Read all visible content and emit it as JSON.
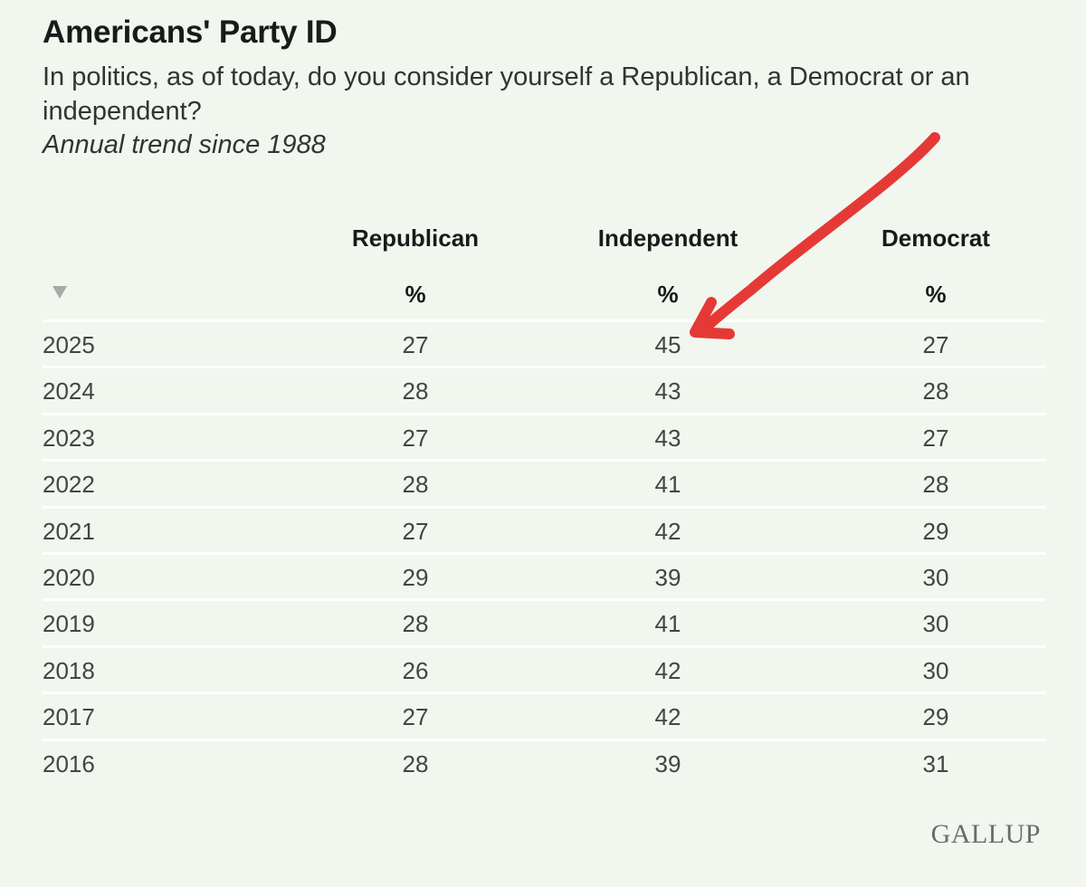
{
  "header": {
    "title": "Americans' Party ID",
    "subtitle": "In politics, as of today, do you consider yourself a Republican, a Democrat or an independent?",
    "note": "Annual trend since 1988"
  },
  "chart_data": {
    "type": "table",
    "title": "Americans' Party ID",
    "columns": [
      "Republican",
      "Independent",
      "Democrat"
    ],
    "units": [
      "%",
      "%",
      "%"
    ],
    "rows": [
      {
        "year": "2025",
        "republican": "27",
        "independent": "45",
        "democrat": "27"
      },
      {
        "year": "2024",
        "republican": "28",
        "independent": "43",
        "democrat": "28"
      },
      {
        "year": "2023",
        "republican": "27",
        "independent": "43",
        "democrat": "27"
      },
      {
        "year": "2022",
        "republican": "28",
        "independent": "41",
        "democrat": "28"
      },
      {
        "year": "2021",
        "republican": "27",
        "independent": "42",
        "democrat": "29"
      },
      {
        "year": "2020",
        "republican": "29",
        "independent": "39",
        "democrat": "30"
      },
      {
        "year": "2019",
        "republican": "28",
        "independent": "41",
        "democrat": "30"
      },
      {
        "year": "2018",
        "republican": "26",
        "independent": "42",
        "democrat": "30"
      },
      {
        "year": "2017",
        "republican": "27",
        "independent": "42",
        "democrat": "29"
      },
      {
        "year": "2016",
        "republican": "28",
        "independent": "39",
        "democrat": "31"
      }
    ]
  },
  "annotation": {
    "arrow_color": "#e53935",
    "points_to": "2025 Independent 45"
  },
  "footer": {
    "logo_text": "GALLUP"
  },
  "icons": {
    "sort": "sort-descending-icon"
  }
}
